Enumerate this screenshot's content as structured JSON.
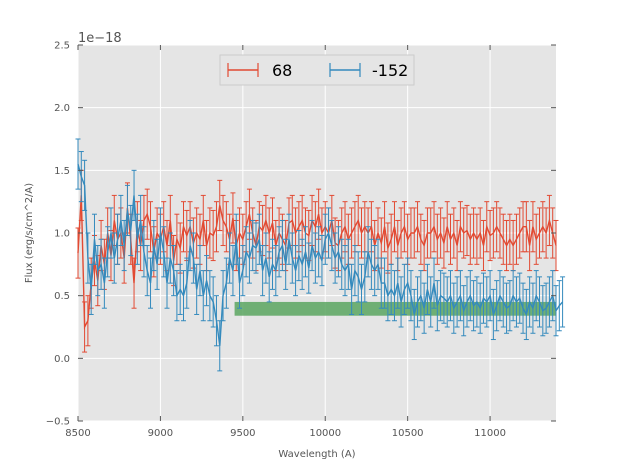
{
  "chart_data": {
    "type": "line",
    "xlabel": "Wavelength (A)",
    "ylabel": "Flux (erg/s/cm^2/A)",
    "y_offset_label": "1e−18",
    "xlim": [
      8500,
      11400
    ],
    "ylim": [
      -0.5,
      2.5
    ],
    "x_ticks": [
      8500,
      9000,
      9500,
      10000,
      10500,
      11000
    ],
    "y_ticks": [
      -0.5,
      0.0,
      0.5,
      1.0,
      1.5,
      2.0,
      2.5
    ],
    "y_tick_labels": [
      "−0.5",
      "0.0",
      "0.5",
      "1.0",
      "1.5",
      "2.0",
      "2.5"
    ],
    "grid": true,
    "legend_position": "top-center",
    "x_start": 8500,
    "x_step": 20,
    "series": [
      {
        "name": "68",
        "color": "#e24a33",
        "values": [
          0.84,
          1.3,
          0.25,
          0.3,
          0.6,
          0.78,
          0.62,
          0.9,
          0.75,
          1.0,
          0.82,
          1.1,
          0.95,
          1.0,
          0.8,
          1.2,
          0.95,
          0.6,
          1.05,
          0.9,
          1.1,
          1.15,
          1.05,
          0.85,
          1.0,
          0.95,
          1.05,
          0.9,
          1.1,
          0.78,
          0.95,
          0.88,
          1.05,
          0.98,
          1.05,
          0.92,
          1.0,
          0.95,
          1.1,
          0.9,
          1.0,
          0.98,
          1.05,
          1.22,
          1.1,
          1.05,
          0.95,
          1.12,
          0.9,
          1.0,
          0.95,
          1.05,
          1.15,
          1.0,
          0.9,
          1.05,
          1.02,
          1.1,
          1.0,
          1.08,
          0.9,
          1.0,
          0.95,
          0.9,
          1.08,
          1.1,
          1.0,
          1.05,
          1.1,
          1.0,
          0.98,
          1.1,
          1.05,
          1.15,
          1.0,
          1.05,
          1.0,
          1.1,
          0.92,
          0.9,
          1.0,
          1.05,
          0.95,
          1.0,
          1.05,
          1.1,
          1.0,
          1.05,
          1.0,
          1.05,
          0.9,
          1.0,
          0.92,
          1.05,
          0.88,
          0.95,
          1.05,
          0.9,
          1.0,
          1.05,
          0.95,
          1.0,
          1.0,
          1.05,
          0.95,
          0.9,
          1.0,
          1.0,
          1.05,
          0.95,
          1.0,
          0.92,
          1.05,
          0.95,
          1.0,
          0.9,
          1.05,
          1.0,
          1.02,
          0.95,
          1.0,
          0.95,
          1.0,
          0.9,
          1.05,
          0.98,
          1.0,
          1.05,
          1.0,
          0.95,
          0.9,
          0.95,
          0.9,
          0.95,
          1.0,
          1.05,
          1.05,
          0.9,
          1.05,
          0.95,
          1.0,
          1.05,
          1.0,
          1.1,
          1.0,
          0.9
        ]
      },
      {
        "name": "-152",
        "color": "#348abd",
        "values": [
          1.55,
          1.45,
          1.38,
          0.8,
          0.55,
          0.95,
          0.7,
          0.75,
          0.6,
          0.85,
          1.0,
          0.8,
          0.95,
          1.1,
          0.9,
          1.18,
          1.02,
          1.3,
          0.95,
          1.1,
          0.85,
          0.7,
          0.6,
          0.9,
          0.75,
          1.0,
          0.85,
          0.6,
          0.8,
          0.7,
          0.5,
          0.55,
          0.5,
          0.6,
          0.9,
          0.8,
          0.55,
          0.7,
          0.5,
          0.62,
          0.5,
          0.45,
          0.3,
          0.1,
          0.5,
          0.6,
          0.8,
          0.7,
          0.95,
          0.6,
          0.7,
          0.85,
          0.8,
          0.9,
          0.88,
          0.95,
          0.7,
          0.8,
          0.65,
          0.75,
          0.7,
          0.85,
          0.9,
          0.75,
          0.95,
          0.8,
          0.7,
          0.82,
          0.75,
          0.85,
          0.72,
          0.9,
          0.8,
          0.85,
          0.78,
          0.95,
          1.0,
          0.9,
          0.8,
          0.85,
          0.75,
          0.7,
          0.75,
          0.55,
          0.7,
          0.65,
          0.55,
          0.65,
          0.85,
          0.75,
          0.7,
          0.75,
          0.6,
          0.6,
          0.5,
          0.55,
          0.5,
          0.6,
          0.45,
          0.55,
          0.6,
          0.5,
          0.35,
          0.45,
          0.5,
          0.4,
          0.55,
          0.45,
          0.6,
          0.42,
          0.5,
          0.48,
          0.45,
          0.5,
          0.4,
          0.45,
          0.5,
          0.38,
          0.45,
          0.5,
          0.42,
          0.45,
          0.4,
          0.48,
          0.45,
          0.5,
          0.35,
          0.42,
          0.5,
          0.45,
          0.4,
          0.42,
          0.5,
          0.45,
          0.48,
          0.4,
          0.35,
          0.45,
          0.4,
          0.5,
          0.45,
          0.38,
          0.4,
          0.45,
          0.5,
          0.38,
          0.42,
          0.45
        ]
      }
    ],
    "error_bar_size": 0.2,
    "continuum_band": {
      "x_start": 9450,
      "x_end": 11400,
      "y_low": 0.34,
      "y_high": 0.45,
      "color": "#5aa660"
    }
  }
}
